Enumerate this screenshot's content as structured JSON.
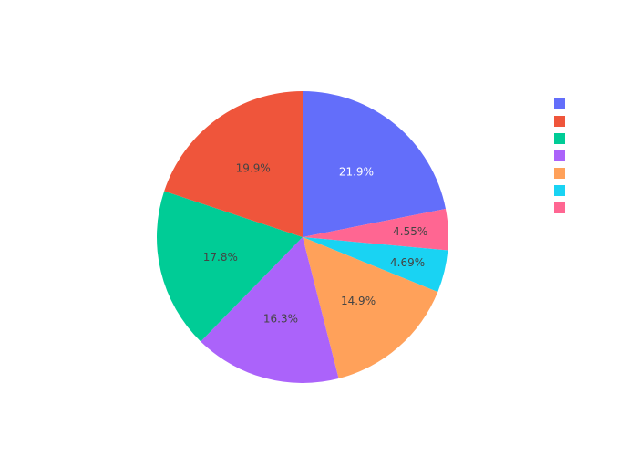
{
  "chart_data": {
    "type": "pie",
    "direction": "clockwise",
    "start": "top (12 o'clock)",
    "slices": [
      {
        "label": "",
        "percent": 21.9,
        "display": "21.9%",
        "color": "#636efa",
        "text_color": "#ffffff"
      },
      {
        "label": "",
        "percent": 4.55,
        "display": "4.55%",
        "color": "#ff6692",
        "text_color": "#444444"
      },
      {
        "label": "",
        "percent": 4.69,
        "display": "4.69%",
        "color": "#19d3f3",
        "text_color": "#444444"
      },
      {
        "label": "",
        "percent": 14.9,
        "display": "14.9%",
        "color": "#ffa15a",
        "text_color": "#444444"
      },
      {
        "label": "",
        "percent": 16.3,
        "display": "16.3%",
        "color": "#ab63fa",
        "text_color": "#444444"
      },
      {
        "label": "",
        "percent": 17.8,
        "display": "17.8%",
        "color": "#00cc96",
        "text_color": "#444444"
      },
      {
        "label": "",
        "percent": 19.9,
        "display": "19.9%",
        "color": "#ef553b",
        "text_color": "#444444"
      }
    ],
    "legend": {
      "placement": "right",
      "entries": [
        {
          "label": "",
          "color": "#636efa"
        },
        {
          "label": "",
          "color": "#ef553b"
        },
        {
          "label": "",
          "color": "#00cc96"
        },
        {
          "label": "",
          "color": "#ab63fa"
        },
        {
          "label": "",
          "color": "#ffa15a"
        },
        {
          "label": "",
          "color": "#19d3f3"
        },
        {
          "label": "",
          "color": "#ff6692"
        }
      ]
    }
  }
}
